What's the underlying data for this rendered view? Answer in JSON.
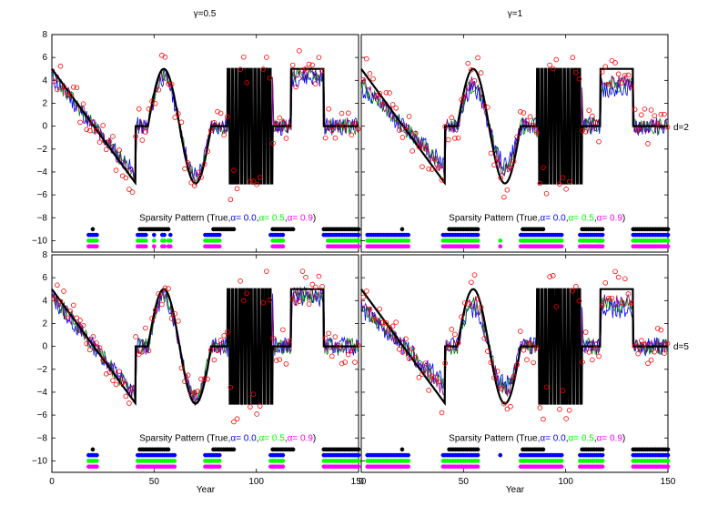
{
  "figure": {
    "xlabel": "Year",
    "col_titles": [
      "γ=0.5",
      "γ=1"
    ],
    "row_labels": [
      "d=2",
      "d=5"
    ],
    "legend": {
      "prefix": "Sparsity Pattern (True,",
      "items": [
        {
          "text": "α= 0.0",
          "color": "#0000ff"
        },
        {
          "text": ",",
          "color": "#000000"
        },
        {
          "text": "α= 0.5",
          "color": "#00ff00"
        },
        {
          "text": ",",
          "color": "#000000"
        },
        {
          "text": "α= 0.9",
          "color": "#ff00ff"
        },
        {
          "text": ")",
          "color": "#000000"
        }
      ]
    },
    "colors": {
      "true": "#000000",
      "noisy": "#ff0000",
      "a0": "#0000ff",
      "a05": "#00ff00",
      "a09": "#ff00ff",
      "a05_line": "#008000",
      "a09_line": "#800080"
    }
  },
  "chart_data": {
    "type": "line",
    "xlim": [
      0,
      150
    ],
    "ylim": [
      -11,
      8
    ],
    "xticks": [
      0,
      50,
      100,
      150
    ],
    "yticks": [
      -10,
      -8,
      -6,
      -4,
      -2,
      0,
      2,
      4,
      6,
      8
    ],
    "true_signal": [
      {
        "segment": "linear",
        "x": [
          0,
          41
        ],
        "y": [
          5,
          -5
        ]
      },
      {
        "segment": "zero",
        "x": [
          41,
          47
        ],
        "y": 0
      },
      {
        "segment": "sine",
        "x": [
          47,
          78
        ],
        "amplitude": 5,
        "peaks_at": [
          59
        ],
        "troughs_at": [
          73
        ]
      },
      {
        "segment": "zero",
        "x": [
          78,
          86
        ],
        "y": 0
      },
      {
        "segment": "square-oscillation",
        "x": [
          86,
          108
        ],
        "amplitude": 5,
        "cycles": 12
      },
      {
        "segment": "zero",
        "x": [
          108,
          117
        ],
        "y": 0
      },
      {
        "segment": "step",
        "x": [
          117,
          133
        ],
        "y": 5
      },
      {
        "segment": "zero",
        "x": [
          133,
          150
        ],
        "y": 0
      }
    ],
    "series": [
      {
        "name": "True",
        "role": "true signal + sparsity row"
      },
      {
        "name": "α= 0.0",
        "role": "estimate + sparsity row"
      },
      {
        "name": "α= 0.5",
        "role": "estimate + sparsity row"
      },
      {
        "name": "α= 0.9",
        "role": "estimate + sparsity row"
      }
    ],
    "panels": [
      {
        "col": 0,
        "row": 0,
        "sparsity": {
          "true": [
            [
              20,
              20
            ],
            [
              43,
              57
            ],
            [
              79,
              89
            ],
            [
              108,
              118
            ],
            [
              133,
              150
            ]
          ],
          "a0": [
            [
              18,
              22
            ],
            [
              42,
              46
            ],
            [
              50,
              50
            ],
            [
              54,
              55
            ],
            [
              58,
              58
            ],
            [
              75,
              82
            ],
            [
              107,
              113
            ],
            [
              133,
              150
            ]
          ],
          "a05": [
            [
              18,
              22
            ],
            [
              42,
              46
            ],
            [
              50,
              50
            ],
            [
              54,
              55
            ],
            [
              57,
              58
            ],
            [
              75,
              82
            ],
            [
              108,
              113
            ],
            [
              135,
              150
            ]
          ],
          "a09": [
            [
              18,
              22
            ],
            [
              42,
              46
            ],
            [
              50,
              50
            ],
            [
              54,
              55
            ],
            [
              57,
              58
            ],
            [
              75,
              82
            ],
            [
              108,
              113
            ],
            [
              135,
              150
            ]
          ]
        }
      },
      {
        "col": 1,
        "row": 0,
        "sparsity": {
          "true": [
            [
              20,
              20
            ],
            [
              43,
              57
            ],
            [
              79,
              89
            ],
            [
              108,
              118
            ],
            [
              133,
              150
            ]
          ],
          "a0": [
            [
              3,
              23
            ],
            [
              40,
              57
            ],
            [
              78,
              98
            ],
            [
              107,
              118
            ],
            [
              133,
              150
            ]
          ],
          "a05": [
            [
              3,
              23
            ],
            [
              40,
              57
            ],
            [
              68,
              68
            ],
            [
              78,
              98
            ],
            [
              107,
              118
            ],
            [
              133,
              150
            ]
          ],
          "a09": [
            [
              3,
              23
            ],
            [
              40,
              57
            ],
            [
              68,
              68
            ],
            [
              78,
              98
            ],
            [
              107,
              118
            ],
            [
              133,
              150
            ]
          ]
        }
      },
      {
        "col": 0,
        "row": 1,
        "sparsity": {
          "true": [
            [
              20,
              20
            ],
            [
              43,
              57
            ],
            [
              79,
              89
            ],
            [
              108,
              118
            ],
            [
              133,
              150
            ]
          ],
          "a0": [
            [
              18,
              22
            ],
            [
              42,
              60
            ],
            [
              75,
              82
            ],
            [
              107,
              113
            ],
            [
              133,
              150
            ]
          ],
          "a05": [
            [
              18,
              22
            ],
            [
              42,
              60
            ],
            [
              75,
              82
            ],
            [
              107,
              113
            ],
            [
              133,
              150
            ]
          ],
          "a09": [
            [
              18,
              22
            ],
            [
              42,
              60
            ],
            [
              75,
              82
            ],
            [
              107,
              113
            ],
            [
              133,
              150
            ]
          ]
        }
      },
      {
        "col": 1,
        "row": 1,
        "sparsity": {
          "true": [
            [
              20,
              20
            ],
            [
              43,
              57
            ],
            [
              79,
              89
            ],
            [
              108,
              118
            ],
            [
              133,
              150
            ]
          ],
          "a0": [
            [
              3,
              23
            ],
            [
              40,
              57
            ],
            [
              68,
              68
            ],
            [
              78,
              98
            ],
            [
              107,
              118
            ],
            [
              133,
              150
            ]
          ],
          "a05": [
            [
              3,
              23
            ],
            [
              40,
              57
            ],
            [
              78,
              98
            ],
            [
              107,
              118
            ],
            [
              133,
              150
            ]
          ],
          "a09": [
            [
              3,
              23
            ],
            [
              40,
              57
            ],
            [
              78,
              98
            ],
            [
              107,
              118
            ],
            [
              133,
              150
            ]
          ]
        }
      }
    ]
  }
}
